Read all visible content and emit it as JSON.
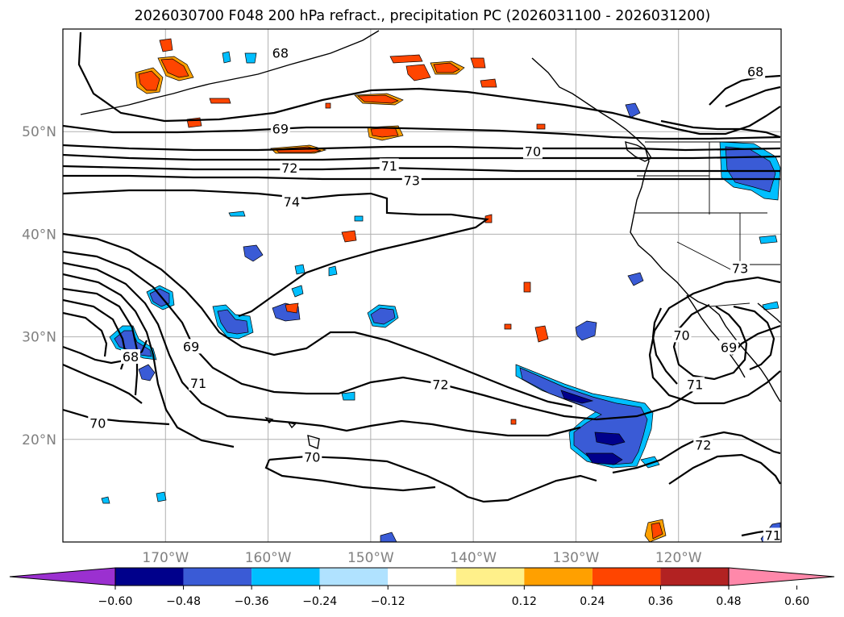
{
  "title": "2026030700 F048 200 hPa refract., precipitation PC (2026031100 - 2026031200)",
  "map": {
    "lon_range": [
      -180,
      -110
    ],
    "lat_range": [
      10,
      60
    ],
    "gridlines": true,
    "lon_ticks": [
      {
        "value": -170,
        "label": "170°W"
      },
      {
        "value": -160,
        "label": "160°W"
      },
      {
        "value": -150,
        "label": "150°W"
      },
      {
        "value": -140,
        "label": "140°W"
      },
      {
        "value": -130,
        "label": "130°W"
      },
      {
        "value": -120,
        "label": "120°W"
      }
    ],
    "lat_ticks": [
      {
        "value": 20,
        "label": "20°N"
      },
      {
        "value": 30,
        "label": "30°N"
      },
      {
        "value": 40,
        "label": "40°N"
      },
      {
        "value": 50,
        "label": "50°N"
      }
    ],
    "contour_labels": [
      {
        "text": "68",
        "lon": -158.8,
        "lat": 57.6
      },
      {
        "text": "68",
        "lon": -112.5,
        "lat": 55.8
      },
      {
        "text": "69",
        "lon": -158.8,
        "lat": 50.2
      },
      {
        "text": "70",
        "lon": -134.2,
        "lat": 48.0
      },
      {
        "text": "71",
        "lon": -148.2,
        "lat": 46.6
      },
      {
        "text": "72",
        "lon": -157.9,
        "lat": 46.4
      },
      {
        "text": "73",
        "lon": -146.0,
        "lat": 45.2
      },
      {
        "text": "74",
        "lon": -157.7,
        "lat": 43.1
      },
      {
        "text": "73",
        "lon": -114.0,
        "lat": 36.6
      },
      {
        "text": "68",
        "lon": -173.4,
        "lat": 28.0
      },
      {
        "text": "69",
        "lon": -167.5,
        "lat": 29.0
      },
      {
        "text": "70",
        "lon": -119.7,
        "lat": 30.1
      },
      {
        "text": "69",
        "lon": -115.1,
        "lat": 28.9
      },
      {
        "text": "71",
        "lon": -166.8,
        "lat": 25.4
      },
      {
        "text": "72",
        "lon": -143.2,
        "lat": 25.3
      },
      {
        "text": "71",
        "lon": -118.4,
        "lat": 25.3
      },
      {
        "text": "70",
        "lon": -176.6,
        "lat": 21.5
      },
      {
        "text": "72",
        "lon": -117.6,
        "lat": 19.4
      },
      {
        "text": "70",
        "lon": -155.7,
        "lat": 18.2
      },
      {
        "text": "71",
        "lon": -110.8,
        "lat": 10.6
      }
    ]
  },
  "colorbar": {
    "colors": [
      "#9b30d0",
      "#00008b",
      "#3a5bd6",
      "#00bfff",
      "#b0e2ff",
      "#ffffff",
      "#fff08a",
      "#ffa000",
      "#ff4500",
      "#b22222",
      "#ff88aa"
    ],
    "tick_labels": [
      "−0.60",
      "−0.48",
      "−0.36",
      "−0.24",
      "−0.12",
      "0.12",
      "0.24",
      "0.36",
      "0.48",
      "0.60"
    ]
  }
}
